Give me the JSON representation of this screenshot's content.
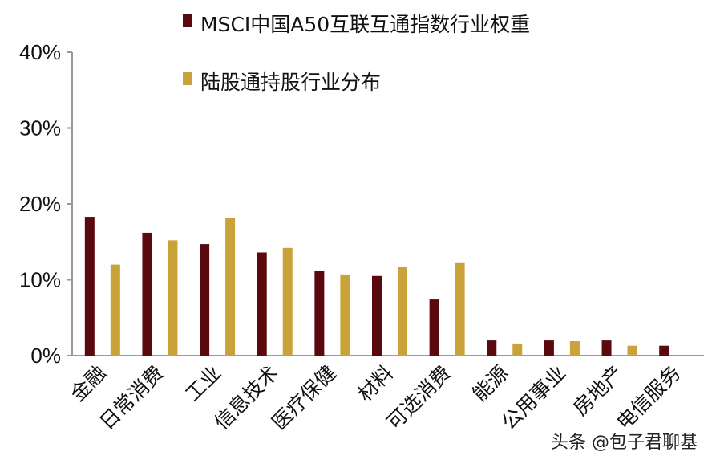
{
  "chart_data": {
    "type": "bar",
    "categories": [
      "金融",
      "日常消费",
      "工业",
      "信息技术",
      "医疗保健",
      "材料",
      "可选消费",
      "能源",
      "公用事业",
      "房地产",
      "电信服务"
    ],
    "series": [
      {
        "name": "MSCI中国A50互联互通指数行业权重",
        "color": "#5a0a0f",
        "values": [
          18.3,
          16.2,
          14.7,
          13.6,
          11.2,
          10.5,
          7.4,
          2.0,
          2.0,
          2.0,
          1.3
        ]
      },
      {
        "name": "陆股通持股行业分布",
        "color": "#c9a23a",
        "values": [
          12.0,
          15.2,
          18.2,
          14.2,
          10.7,
          11.7,
          12.3,
          1.6,
          1.9,
          1.3,
          0
        ]
      }
    ],
    "yticks": [
      "0%",
      "10%",
      "20%",
      "30%",
      "40%"
    ],
    "ylim": [
      0,
      40
    ],
    "xlabel": "",
    "ylabel": "",
    "legend_position": "top",
    "grid": false
  },
  "watermark": "头条 @包子君聊基"
}
